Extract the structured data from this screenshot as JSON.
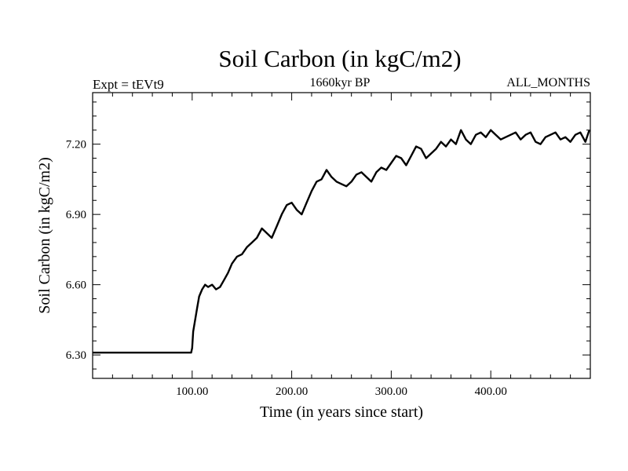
{
  "chart_data": {
    "type": "line",
    "title": "Soil Carbon (in kgC/m2)",
    "subtitle_left": "Expt = tEVt9",
    "subtitle_center": "1660kyr BP",
    "subtitle_right": "ALL_MONTHS",
    "xlabel": "Time (in years since start)",
    "ylabel": "Soil Carbon (in kgC/m2)",
    "xlim": [
      0,
      500
    ],
    "ylim": [
      6.2,
      7.42
    ],
    "x_ticks": [
      100,
      200,
      300,
      400
    ],
    "x_tick_labels": [
      "100.00",
      "200.00",
      "300.00",
      "400.00"
    ],
    "y_ticks": [
      6.3,
      6.6,
      6.9,
      7.2
    ],
    "y_tick_labels": [
      "6.30",
      "6.60",
      "6.90",
      "7.20"
    ],
    "series": [
      {
        "name": "Soil Carbon",
        "color": "#000000",
        "x": [
          0,
          99,
          100,
          101,
          103,
          105,
          107,
          110,
          113,
          116,
          120,
          124,
          128,
          132,
          136,
          140,
          145,
          150,
          155,
          160,
          165,
          170,
          175,
          180,
          185,
          190,
          195,
          200,
          205,
          210,
          215,
          220,
          225,
          230,
          235,
          240,
          245,
          250,
          255,
          260,
          265,
          270,
          275,
          280,
          285,
          290,
          295,
          300,
          305,
          310,
          315,
          320,
          325,
          330,
          335,
          340,
          345,
          350,
          355,
          360,
          365,
          370,
          375,
          380,
          385,
          390,
          395,
          400,
          405,
          410,
          415,
          420,
          425,
          430,
          435,
          440,
          445,
          450,
          455,
          460,
          465,
          470,
          475,
          480,
          485,
          490,
          495,
          499
        ],
        "y": [
          6.31,
          6.31,
          6.33,
          6.4,
          6.45,
          6.5,
          6.55,
          6.58,
          6.6,
          6.59,
          6.6,
          6.58,
          6.59,
          6.62,
          6.65,
          6.69,
          6.72,
          6.73,
          6.76,
          6.78,
          6.8,
          6.84,
          6.82,
          6.8,
          6.85,
          6.9,
          6.94,
          6.95,
          6.92,
          6.9,
          6.95,
          7.0,
          7.04,
          7.05,
          7.09,
          7.06,
          7.04,
          7.03,
          7.02,
          7.04,
          7.07,
          7.08,
          7.06,
          7.04,
          7.08,
          7.1,
          7.09,
          7.12,
          7.15,
          7.14,
          7.11,
          7.15,
          7.19,
          7.18,
          7.14,
          7.16,
          7.18,
          7.21,
          7.19,
          7.22,
          7.2,
          7.26,
          7.22,
          7.2,
          7.24,
          7.25,
          7.23,
          7.26,
          7.24,
          7.22,
          7.23,
          7.24,
          7.25,
          7.22,
          7.24,
          7.25,
          7.21,
          7.2,
          7.23,
          7.24,
          7.25,
          7.22,
          7.23,
          7.21,
          7.24,
          7.25,
          7.21,
          7.26
        ]
      }
    ]
  }
}
